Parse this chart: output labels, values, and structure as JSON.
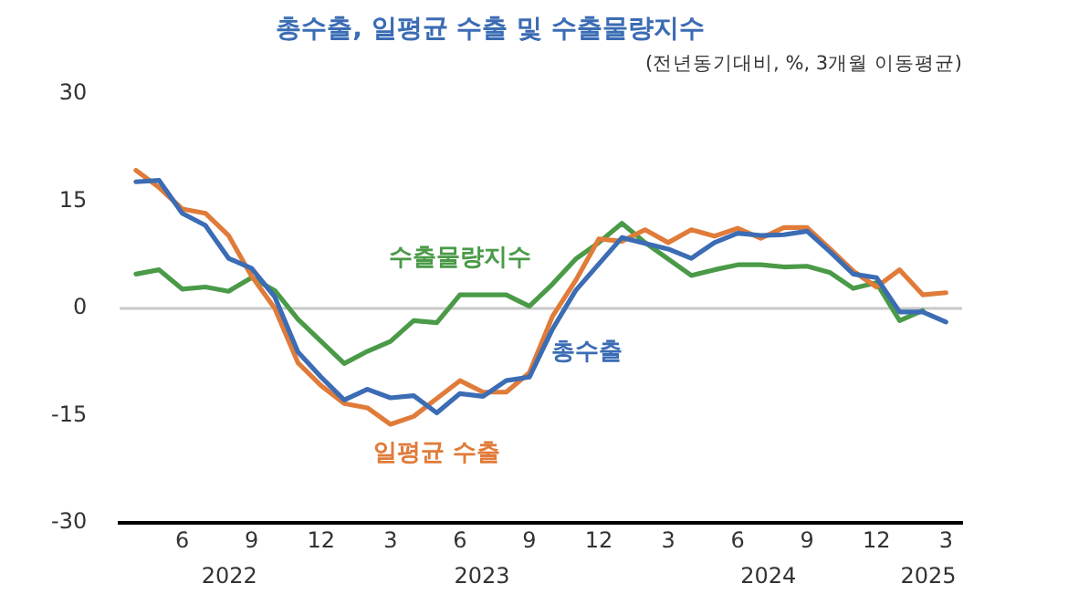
{
  "chart_data": {
    "type": "line",
    "title": "총수출, 일평균 수출 및 수출물량지수",
    "subtitle": "(전년동기대비, %, 3개월 이동평균)",
    "x": [
      "2022-04",
      "2022-05",
      "2022-06",
      "2022-07",
      "2022-08",
      "2022-09",
      "2022-10",
      "2022-11",
      "2022-12",
      "2023-01",
      "2023-02",
      "2023-03",
      "2023-04",
      "2023-05",
      "2023-06",
      "2023-07",
      "2023-08",
      "2023-09",
      "2023-10",
      "2023-11",
      "2023-12",
      "2024-01",
      "2024-02",
      "2024-03",
      "2024-04",
      "2024-05",
      "2024-06",
      "2024-07",
      "2024-08",
      "2024-09",
      "2024-10",
      "2024-11",
      "2024-12",
      "2025-01",
      "2025-02",
      "2025-03"
    ],
    "series": [
      {
        "name": "총수출",
        "color": "#3b6cb4",
        "values": [
          17.7,
          17.9,
          13.3,
          11.6,
          7.0,
          5.6,
          1.6,
          -6.1,
          -9.6,
          -12.8,
          -11.3,
          -12.5,
          -12.2,
          -14.6,
          -11.9,
          -12.3,
          -10.1,
          -9.6,
          -2.9,
          2.5,
          6.2,
          9.9,
          9.1,
          8.3,
          7.0,
          9.2,
          10.5,
          10.2,
          10.3,
          10.8,
          7.9,
          4.8,
          4.3,
          -0.5,
          -0.5,
          -1.9
        ]
      },
      {
        "name": "일평균 수출",
        "color": "#e07b39",
        "values": [
          19.3,
          16.9,
          13.9,
          13.3,
          10.2,
          4.5,
          0.0,
          -7.6,
          -10.8,
          -13.3,
          -13.9,
          -16.2,
          -15.1,
          -12.6,
          -10.1,
          -11.7,
          -11.7,
          -9.0,
          -1.1,
          3.9,
          9.7,
          9.4,
          11.0,
          9.2,
          11.0,
          10.1,
          11.2,
          9.8,
          11.3,
          11.3,
          8.3,
          5.2,
          3.0,
          5.4,
          1.9,
          2.2
        ]
      },
      {
        "name": "수출물량지수",
        "color": "#4a9a48",
        "values": [
          4.8,
          5.4,
          2.7,
          3.0,
          2.4,
          4.3,
          2.5,
          -1.5,
          -4.6,
          -7.7,
          -6.0,
          -4.6,
          -1.7,
          -2.0,
          1.9,
          1.9,
          1.9,
          0.3,
          3.4,
          6.9,
          9.2,
          11.9,
          9.2,
          6.9,
          4.6,
          5.4,
          6.1,
          6.1,
          5.8,
          5.9,
          5.0,
          2.8,
          3.6,
          -1.7,
          -0.3,
          null
        ]
      }
    ],
    "xlim": [
      "2022-03-10",
      "2025-03-22"
    ],
    "xticks": [
      {
        "value": "2022-06",
        "label": "6"
      },
      {
        "value": "2022-09",
        "label": "9"
      },
      {
        "value": "2022-12",
        "label": "12"
      },
      {
        "value": "2023-03",
        "label": "3"
      },
      {
        "value": "2023-06",
        "label": "6"
      },
      {
        "value": "2023-09",
        "label": "9"
      },
      {
        "value": "2023-12",
        "label": "12"
      },
      {
        "value": "2024-03",
        "label": "3"
      },
      {
        "value": "2024-06",
        "label": "6"
      },
      {
        "value": "2024-09",
        "label": "9"
      },
      {
        "value": "2024-12",
        "label": "12"
      },
      {
        "value": "2025-03",
        "label": "3"
      }
    ],
    "ylim": [
      -30,
      30
    ],
    "yticks": [
      -30,
      -15,
      0,
      15,
      30
    ],
    "ref_lines": [
      {
        "axis": "y",
        "value": 0,
        "color": "#c8c8c8"
      }
    ],
    "annotations": [
      "2022",
      "2023",
      "2024",
      "2025"
    ],
    "grid": false,
    "legend": false,
    "marker": "none",
    "line_style": "solid"
  }
}
